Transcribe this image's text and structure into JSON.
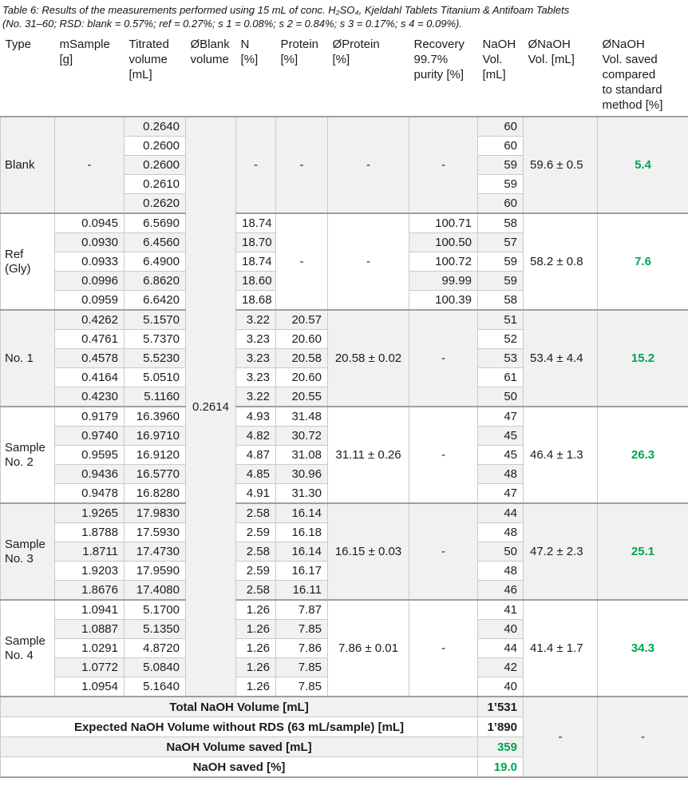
{
  "caption": "Table 6: Results of the measurements performed using 15 mL of conc. H₂SO₄, Kjeldahl Tablets Titanium & Antifoam Tablets\n(No. 31–60; RSD: blank = 0.57%; ref = 0.27%; s 1 = 0.08%; s 2 = 0.84%; s 3 = 0.17%; s 4 = 0.09%).",
  "colors": {
    "accent_green": "#00a551",
    "block_grey": "#f1f1f1",
    "grid_line": "#c9c9c9",
    "section_line": "#9f9f9f"
  },
  "columns": [
    "Type",
    "mSample\n[g]",
    "Titrated\nvolume\n[mL]",
    "ØBlank\nvolume",
    "N\n[%]",
    "Protein\n[%]",
    "ØProtein\n[%]",
    "Recovery\n99.7%\npurity [%]",
    "NaOH\nVol.\n[mL]",
    "ØNaOH\nVol. [mL]",
    "ØNaOH\nVol. saved\ncompared\nto standard\nmethod [%]"
  ],
  "blank_volume": "0.2614",
  "blocks": [
    {
      "label": "Blank",
      "shade": "grey",
      "msample": "-",
      "titrated": [
        "0.2640",
        "0.2600",
        "0.2600",
        "0.2610",
        "0.2620"
      ],
      "n": "-",
      "protein": "-",
      "oprotein": "-",
      "recovery": "-",
      "naoh": [
        "60",
        "60",
        "59",
        "59",
        "60"
      ],
      "onaoh": "59.6 ± 0.5",
      "saved": "5.4"
    },
    {
      "label": "Ref (Gly)",
      "shade": "white",
      "msample": [
        "0.0945",
        "0.0930",
        "0.0933",
        "0.0996",
        "0.0959"
      ],
      "titrated": [
        "6.5690",
        "6.4560",
        "6.4900",
        "6.8620",
        "6.6420"
      ],
      "n": [
        "18.74",
        "18.70",
        "18.74",
        "18.60",
        "18.68"
      ],
      "protein": "-",
      "oprotein": "-",
      "recovery": [
        "100.71",
        "100.50",
        "100.72",
        "99.99",
        "100.39"
      ],
      "naoh": [
        "58",
        "57",
        "59",
        "59",
        "58"
      ],
      "onaoh": "58.2 ± 0.8",
      "saved": "7.6"
    },
    {
      "label": "No. 1",
      "shade": "grey",
      "msample": [
        "0.4262",
        "0.4761",
        "0.4578",
        "0.4164",
        "0.4230"
      ],
      "titrated": [
        "5.1570",
        "5.7370",
        "5.5230",
        "5.0510",
        "5.1160"
      ],
      "n": [
        "3.22",
        "3.23",
        "3.23",
        "3.23",
        "3.22"
      ],
      "protein": [
        "20.57",
        "20.60",
        "20.58",
        "20.60",
        "20.55"
      ],
      "oprotein": "20.58 ± 0.02",
      "recovery": "-",
      "naoh": [
        "51",
        "52",
        "53",
        "61",
        "50"
      ],
      "onaoh": "53.4 ± 4.4",
      "saved": "15.2"
    },
    {
      "label": "Sample No. 2",
      "shade": "white",
      "msample": [
        "0.9179",
        "0.9740",
        "0.9595",
        "0.9436",
        "0.9478"
      ],
      "titrated": [
        "16.3960",
        "16.9710",
        "16.9120",
        "16.5770",
        "16.8280"
      ],
      "n": [
        "4.93",
        "4.82",
        "4.87",
        "4.85",
        "4.91"
      ],
      "protein": [
        "31.48",
        "30.72",
        "31.08",
        "30.96",
        "31.30"
      ],
      "oprotein": "31.11 ± 0.26",
      "recovery": "-",
      "naoh": [
        "47",
        "45",
        "45",
        "48",
        "47"
      ],
      "onaoh": "46.4 ± 1.3",
      "saved": "26.3"
    },
    {
      "label": "Sample No. 3",
      "shade": "grey",
      "msample": [
        "1.9265",
        "1.8788",
        "1.8711",
        "1.9203",
        "1.8676"
      ],
      "titrated": [
        "17.9830",
        "17.5930",
        "17.4730",
        "17.9590",
        "17.4080"
      ],
      "n": [
        "2.58",
        "2.59",
        "2.58",
        "2.59",
        "2.58"
      ],
      "protein": [
        "16.14",
        "16.18",
        "16.14",
        "16.17",
        "16.11"
      ],
      "oprotein": "16.15 ± 0.03",
      "recovery": "-",
      "naoh": [
        "44",
        "48",
        "50",
        "48",
        "46"
      ],
      "onaoh": "47.2 ± 2.3",
      "saved": "25.1"
    },
    {
      "label": "Sample No. 4",
      "shade": "white",
      "msample": [
        "1.0941",
        "1.0887",
        "1.0291",
        "1.0772",
        "1.0954"
      ],
      "titrated": [
        "5.1700",
        "5.1350",
        "4.8720",
        "5.0840",
        "5.1640"
      ],
      "n": [
        "1.26",
        "1.26",
        "1.26",
        "1.26",
        "1.26"
      ],
      "protein": [
        "7.87",
        "7.85",
        "7.86",
        "7.85",
        "7.85"
      ],
      "oprotein": "7.86 ± 0.01",
      "recovery": "-",
      "naoh": [
        "41",
        "40",
        "44",
        "42",
        "40"
      ],
      "onaoh": "41.4 ± 1.7",
      "saved": "34.3"
    }
  ],
  "summary": {
    "rows": [
      {
        "label": "Total NaOH Volume [mL]",
        "value": "1’531",
        "green": false
      },
      {
        "label": "Expected NaOH Volume without RDS (63 mL/sample) [mL]",
        "value": "1’890",
        "green": false
      },
      {
        "label": "NaOH Volume saved [mL]",
        "value": "359",
        "green": true
      },
      {
        "label": "NaOH saved [%]",
        "value": "19.0",
        "green": true
      }
    ],
    "onaoh_dash": "-",
    "saved_dash": "-"
  }
}
